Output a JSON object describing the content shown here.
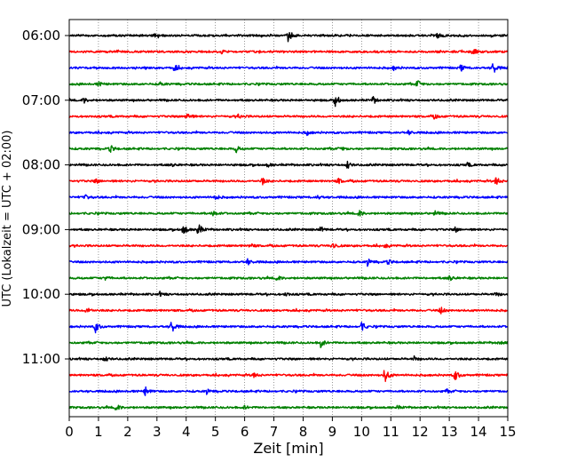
{
  "chart_data": {
    "type": "line",
    "xlabel": "Zeit  [min]",
    "ylabel": "UTC (Lokalzeit = UTC + 02:00)",
    "xlim": [
      0,
      15
    ],
    "xticks": [
      0,
      1,
      2,
      3,
      4,
      5,
      6,
      7,
      8,
      9,
      10,
      11,
      12,
      13,
      14,
      15
    ],
    "grid": "vertical dotted",
    "trace_interval_min": 15,
    "trace_colors": [
      "#000000",
      "#ff0000",
      "#0000ff",
      "#008000"
    ],
    "traces": [
      {
        "start": "06:00",
        "color": "#000000",
        "events": [
          [
            2.9,
            0.25
          ],
          [
            7.5,
            0.9
          ],
          [
            12.6,
            0.3
          ]
        ]
      },
      {
        "start": "06:15",
        "color": "#ff0000",
        "events": [
          [
            5.2,
            0.2
          ],
          [
            13.8,
            0.45
          ]
        ]
      },
      {
        "start": "06:30",
        "color": "#0000ff",
        "events": [
          [
            3.6,
            0.45
          ],
          [
            11.1,
            0.25
          ],
          [
            13.4,
            0.4
          ],
          [
            14.5,
            0.8
          ]
        ]
      },
      {
        "start": "06:45",
        "color": "#008000",
        "events": [
          [
            1.0,
            0.25
          ],
          [
            3.1,
            0.2
          ],
          [
            11.9,
            0.45
          ]
        ]
      },
      {
        "start": "07:00",
        "color": "#000000",
        "events": [
          [
            0.5,
            0.3
          ],
          [
            9.1,
            0.9
          ],
          [
            10.4,
            0.45
          ]
        ]
      },
      {
        "start": "07:15",
        "color": "#ff0000",
        "events": [
          [
            4.0,
            0.8
          ],
          [
            5.8,
            0.25
          ],
          [
            12.5,
            0.25
          ]
        ]
      },
      {
        "start": "07:30",
        "color": "#0000ff",
        "events": [
          [
            8.1,
            0.35
          ],
          [
            11.6,
            0.25
          ]
        ]
      },
      {
        "start": "07:45",
        "color": "#008000",
        "events": [
          [
            1.4,
            0.45
          ],
          [
            5.7,
            0.45
          ],
          [
            9.3,
            0.25
          ]
        ]
      },
      {
        "start": "08:00",
        "color": "#000000",
        "events": [
          [
            3.5,
            0.2
          ],
          [
            6.8,
            0.25
          ],
          [
            9.5,
            0.5
          ],
          [
            13.6,
            0.25
          ]
        ]
      },
      {
        "start": "08:15",
        "color": "#ff0000",
        "events": [
          [
            0.9,
            0.3
          ],
          [
            6.6,
            0.45
          ],
          [
            9.2,
            0.35
          ],
          [
            14.6,
            0.6
          ]
        ]
      },
      {
        "start": "08:30",
        "color": "#0000ff",
        "events": [
          [
            0.5,
            0.45
          ],
          [
            5.0,
            0.3
          ],
          [
            8.5,
            0.25
          ]
        ]
      },
      {
        "start": "08:45",
        "color": "#008000",
        "events": [
          [
            4.9,
            0.4
          ],
          [
            9.9,
            0.45
          ],
          [
            12.5,
            0.3
          ]
        ]
      },
      {
        "start": "09:00",
        "color": "#000000",
        "events": [
          [
            3.9,
            0.75
          ],
          [
            4.4,
            0.95
          ],
          [
            8.6,
            0.3
          ],
          [
            13.2,
            0.3
          ]
        ]
      },
      {
        "start": "09:15",
        "color": "#ff0000",
        "events": [
          [
            6.2,
            0.25
          ],
          [
            9.0,
            0.55
          ],
          [
            10.8,
            0.2
          ]
        ]
      },
      {
        "start": "09:30",
        "color": "#0000ff",
        "events": [
          [
            6.1,
            0.4
          ],
          [
            10.2,
            0.45
          ],
          [
            10.9,
            0.3
          ]
        ]
      },
      {
        "start": "09:45",
        "color": "#008000",
        "events": [
          [
            1.2,
            0.3
          ],
          [
            7.1,
            0.35
          ],
          [
            13.0,
            0.4
          ]
        ]
      },
      {
        "start": "10:00",
        "color": "#000000",
        "events": [
          [
            3.1,
            0.2
          ],
          [
            7.4,
            0.25
          ],
          [
            14.6,
            0.25
          ]
        ]
      },
      {
        "start": "10:15",
        "color": "#ff0000",
        "events": [
          [
            0.6,
            0.55
          ],
          [
            12.7,
            0.45
          ]
        ]
      },
      {
        "start": "10:30",
        "color": "#0000ff",
        "events": [
          [
            0.9,
            0.7
          ],
          [
            3.5,
            0.85
          ],
          [
            10.0,
            0.6
          ]
        ]
      },
      {
        "start": "10:45",
        "color": "#008000",
        "events": [
          [
            8.6,
            0.6
          ],
          [
            14.7,
            0.25
          ]
        ]
      },
      {
        "start": "11:00",
        "color": "#000000",
        "events": [
          [
            1.2,
            0.35
          ],
          [
            11.8,
            0.25
          ]
        ]
      },
      {
        "start": "11:15",
        "color": "#ff0000",
        "events": [
          [
            6.3,
            0.35
          ],
          [
            10.8,
            1.0
          ],
          [
            13.2,
            0.7
          ]
        ]
      },
      {
        "start": "11:30",
        "color": "#0000ff",
        "events": [
          [
            2.6,
            0.55
          ],
          [
            4.7,
            0.3
          ],
          [
            12.9,
            0.2
          ]
        ]
      },
      {
        "start": "11:45",
        "color": "#008000",
        "events": [
          [
            1.6,
            0.45
          ],
          [
            6.0,
            0.2
          ],
          [
            11.2,
            0.2
          ]
        ]
      }
    ],
    "ytick_labels": [
      "06:00",
      "07:00",
      "08:00",
      "09:00",
      "10:00",
      "11:00"
    ]
  }
}
